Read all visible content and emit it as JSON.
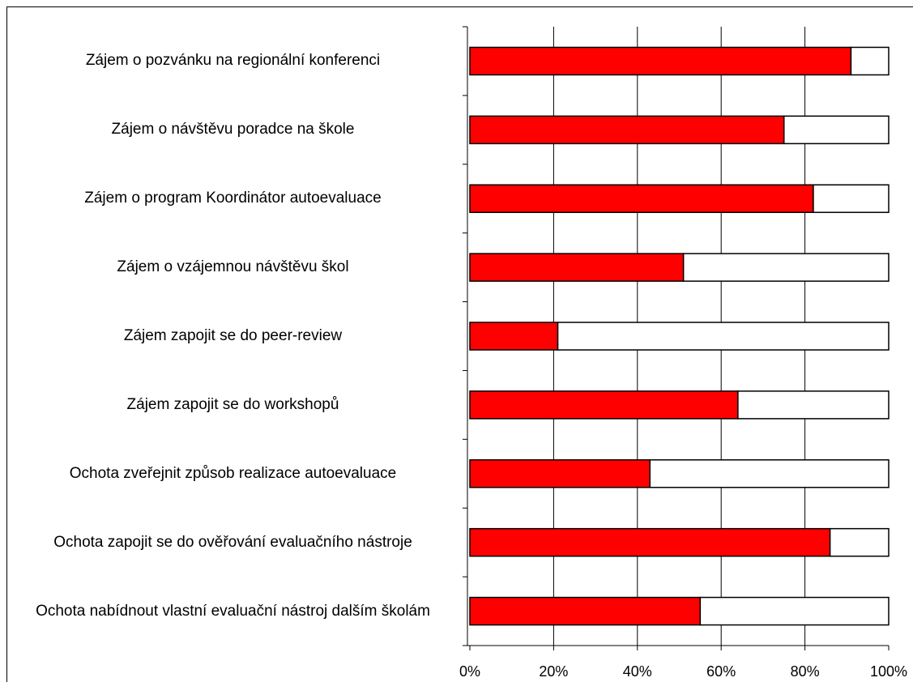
{
  "chart_data": {
    "type": "stacked-barh",
    "categories": [
      "Zájem o pozvánku na regionální konferenci",
      "Zájem o návštěvu poradce na škole",
      "Zájem o program Koordinátor autoevaluace",
      "Zájem o vzájemnou návštěvu škol",
      "Zájem zapojit se do peer-review",
      "Zájem zapojit se do workshopů",
      "Ochota zveřejnit způsob realizace autoevaluace",
      "Ochota zapojit se do ověřování evaluačního nástroje",
      "Ochota nabídnout vlastní evaluační nástroj dalším školám"
    ],
    "series": [
      {
        "color": "#ff0000",
        "values": [
          91,
          75,
          82,
          51,
          21,
          64,
          43,
          86,
          55
        ]
      },
      {
        "color": "#ffffff",
        "values": [
          9,
          25,
          18,
          49,
          79,
          36,
          57,
          14,
          45
        ]
      }
    ],
    "xlim": [
      0,
      100
    ],
    "xticks": [
      {
        "value": 0,
        "label": "0%"
      },
      {
        "value": 20,
        "label": "20%"
      },
      {
        "value": 40,
        "label": "40%"
      },
      {
        "value": 60,
        "label": "60%"
      },
      {
        "value": 80,
        "label": "80%"
      },
      {
        "value": 100,
        "label": "100%"
      }
    ],
    "grid": true
  }
}
